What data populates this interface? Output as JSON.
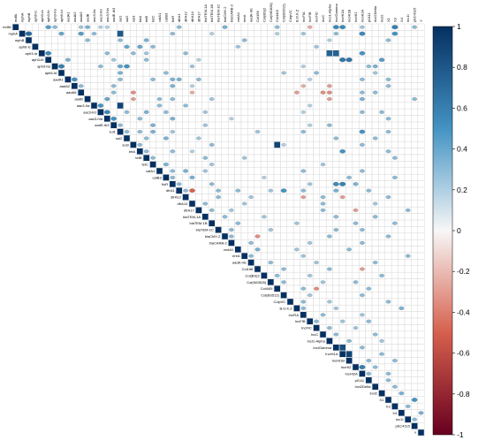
{
  "chart_data": {
    "type": "heatmap",
    "subtype": "upper-triangular correlation matrix (circle glyphs)",
    "labels": [
      "mdfA",
      "mphA",
      "mphB",
      "aph6-Ic",
      "aph3-Ia",
      "aph3-Ib",
      "aph3-IIa",
      "aph6-Id",
      "aadA1",
      "aadA2",
      "aadA5",
      "aadB",
      "aac3-IIa",
      "aac3-IId",
      "aac3-IVa",
      "aadE-Ib3",
      "sul1",
      "sul2",
      "sul3",
      "tetA",
      "tetB",
      "tetC",
      "catA1",
      "catB3",
      "floR",
      "dfrA1",
      "dfrA12",
      "dfrA14",
      "dfrA17",
      "blaTEM-1A",
      "blaTEM-1B",
      "blaTEM-1C",
      "blaCMY-2",
      "blaCARB-2",
      "cmlA1",
      "ereA",
      "aadA-IIIc",
      "Col156",
      "Col(BS)2",
      "Col(MG828)",
      "Col440I",
      "Col(BS512)",
      "ColpVC",
      "B.O.K.Z",
      "IncFIA",
      "IncFIB",
      "IncFIC",
      "IncC",
      "IncI1-Alpha",
      "IncIGamma",
      "IncHI1A",
      "IncHI1B",
      "IncHI2",
      "IncHI2A",
      "p0111",
      "IncI2Delta",
      "Incl2",
      "X1",
      "X3",
      "X4",
      "Inc1I",
      "pEC4115",
      "Y"
    ],
    "diagonal_value": 1,
    "cells": [
      [
        0,
        5,
        0.45
      ],
      [
        0,
        6,
        0.3
      ],
      [
        0,
        10,
        0.25
      ],
      [
        0,
        11,
        0.35
      ],
      [
        0,
        13,
        0.2
      ],
      [
        0,
        14,
        0.2
      ],
      [
        0,
        25,
        0.3
      ],
      [
        0,
        32,
        0.35
      ],
      [
        0,
        40,
        0.3
      ],
      [
        0,
        45,
        -0.25
      ],
      [
        0,
        49,
        0.55
      ],
      [
        0,
        50,
        0.55
      ],
      [
        0,
        53,
        0.25
      ],
      [
        0,
        58,
        0.6
      ],
      [
        0,
        61,
        0.3
      ],
      [
        1,
        2,
        0.7
      ],
      [
        1,
        7,
        0.4
      ],
      [
        1,
        10,
        0.45
      ],
      [
        1,
        12,
        0.3
      ],
      [
        1,
        16,
        0.8
      ],
      [
        1,
        24,
        0.3
      ],
      [
        1,
        30,
        0.2
      ],
      [
        1,
        40,
        0.2
      ],
      [
        1,
        44,
        0.25
      ],
      [
        1,
        49,
        0.3
      ],
      [
        1,
        53,
        0.55
      ],
      [
        1,
        58,
        0.5
      ],
      [
        2,
        11,
        0.3
      ],
      [
        2,
        16,
        0.3
      ],
      [
        2,
        20,
        0.35
      ],
      [
        2,
        35,
        0.3
      ],
      [
        2,
        48,
        0.2
      ],
      [
        2,
        57,
        0.3
      ],
      [
        3,
        17,
        0.4
      ],
      [
        3,
        19,
        0.4
      ],
      [
        3,
        21,
        0.3
      ],
      [
        3,
        34,
        0.25
      ],
      [
        3,
        46,
        0.25
      ],
      [
        4,
        5,
        0.55
      ],
      [
        4,
        14,
        0.3
      ],
      [
        4,
        18,
        0.3
      ],
      [
        4,
        20,
        0.25
      ],
      [
        4,
        26,
        0.3
      ],
      [
        4,
        48,
        0.75
      ],
      [
        4,
        49,
        0.75
      ],
      [
        4,
        53,
        0.5
      ],
      [
        5,
        8,
        0.35
      ],
      [
        5,
        15,
        0.25
      ],
      [
        5,
        20,
        0.3
      ],
      [
        5,
        28,
        0.2
      ],
      [
        5,
        50,
        0.65
      ],
      [
        5,
        51,
        0.65
      ],
      [
        5,
        56,
        0.45
      ],
      [
        6,
        7,
        0.6
      ],
      [
        6,
        13,
        0.3
      ],
      [
        6,
        16,
        0.4
      ],
      [
        6,
        17,
        0.5
      ],
      [
        6,
        27,
        0.25
      ],
      [
        6,
        44,
        0.2
      ],
      [
        6,
        54,
        0.3
      ],
      [
        6,
        55,
        0.35
      ],
      [
        7,
        16,
        0.35
      ],
      [
        7,
        23,
        0.3
      ],
      [
        7,
        41,
        0.25
      ],
      [
        7,
        46,
        0.3
      ],
      [
        7,
        55,
        0.25
      ],
      [
        8,
        9,
        0.5
      ],
      [
        8,
        16,
        0.3
      ],
      [
        8,
        21,
        0.3
      ],
      [
        8,
        24,
        0.35
      ],
      [
        8,
        25,
        0.35
      ],
      [
        8,
        28,
        0.3
      ],
      [
        8,
        45,
        0.2
      ],
      [
        8,
        53,
        0.3
      ],
      [
        8,
        57,
        0.3
      ],
      [
        9,
        10,
        0.3
      ],
      [
        9,
        15,
        0.3
      ],
      [
        9,
        24,
        0.35
      ],
      [
        9,
        27,
        0.2
      ],
      [
        9,
        44,
        -0.25
      ],
      [
        9,
        48,
        -0.3
      ],
      [
        9,
        57,
        0.3
      ],
      [
        10,
        15,
        0.3
      ],
      [
        10,
        18,
        -0.35
      ],
      [
        10,
        27,
        -0.25
      ],
      [
        10,
        43,
        -0.3
      ],
      [
        10,
        47,
        -0.35
      ],
      [
        10,
        48,
        -0.35
      ],
      [
        10,
        53,
        0.3
      ],
      [
        10,
        55,
        0.3
      ],
      [
        11,
        14,
        0.4
      ],
      [
        11,
        18,
        -0.3
      ],
      [
        11,
        22,
        0.3
      ],
      [
        11,
        24,
        0.3
      ],
      [
        11,
        30,
        0.25
      ],
      [
        11,
        48,
        -0.3
      ],
      [
        11,
        53,
        0.35
      ],
      [
        11,
        61,
        0.3
      ],
      [
        12,
        13,
        0.5
      ],
      [
        12,
        16,
        0.9
      ],
      [
        12,
        22,
        0.3
      ],
      [
        12,
        26,
        0.3
      ],
      [
        12,
        45,
        0.2
      ],
      [
        13,
        14,
        0.55
      ],
      [
        13,
        17,
        0.3
      ],
      [
        13,
        20,
        0.35
      ],
      [
        13,
        23,
        0.3
      ],
      [
        13,
        29,
        0.25
      ],
      [
        13,
        44,
        0.2
      ],
      [
        13,
        53,
        0.3
      ],
      [
        13,
        56,
        0.3
      ],
      [
        14,
        15,
        0.5
      ],
      [
        14,
        19,
        0.3
      ],
      [
        14,
        24,
        0.35
      ],
      [
        14,
        33,
        0.2
      ],
      [
        14,
        57,
        0.3
      ],
      [
        15,
        16,
        0.3
      ],
      [
        15,
        21,
        0.35
      ],
      [
        15,
        29,
        0.25
      ],
      [
        15,
        45,
        0.2
      ],
      [
        15,
        48,
        0.3
      ],
      [
        16,
        17,
        0.3
      ],
      [
        16,
        19,
        0.3
      ],
      [
        16,
        21,
        0.35
      ],
      [
        16,
        24,
        0.25
      ],
      [
        16,
        37,
        0.25
      ],
      [
        16,
        44,
        0.3
      ],
      [
        16,
        53,
        0.5
      ],
      [
        16,
        57,
        0.3
      ],
      [
        17,
        20,
        0.3
      ],
      [
        17,
        23,
        0.35
      ],
      [
        17,
        28,
        0.25
      ],
      [
        17,
        49,
        0.3
      ],
      [
        17,
        55,
        0.3
      ],
      [
        18,
        19,
        0.3
      ],
      [
        18,
        30,
        0.3
      ],
      [
        18,
        40,
        0.9
      ],
      [
        18,
        41,
        0.2
      ],
      [
        18,
        53,
        0.3
      ],
      [
        19,
        20,
        0.3
      ],
      [
        19,
        24,
        0.3
      ],
      [
        19,
        27,
        0.2
      ],
      [
        19,
        50,
        0.5
      ],
      [
        19,
        57,
        0.3
      ],
      [
        20,
        21,
        0.3
      ],
      [
        20,
        29,
        0.3
      ],
      [
        20,
        35,
        0.25
      ],
      [
        20,
        58,
        0.3
      ],
      [
        21,
        23,
        0.35
      ],
      [
        21,
        30,
        0.25
      ],
      [
        21,
        47,
        0.25
      ],
      [
        22,
        24,
        0.3
      ],
      [
        22,
        26,
        0.35
      ],
      [
        22,
        29,
        0.25
      ],
      [
        22,
        44,
        0.3
      ],
      [
        22,
        53,
        0.3
      ],
      [
        23,
        24,
        0.3
      ],
      [
        23,
        27,
        0.35
      ],
      [
        23,
        38,
        0.2
      ],
      [
        23,
        51,
        0.3
      ],
      [
        23,
        58,
        0.3
      ],
      [
        24,
        25,
        0.3
      ],
      [
        24,
        30,
        0.3
      ],
      [
        24,
        45,
        0.25
      ],
      [
        24,
        49,
        0.55
      ],
      [
        24,
        50,
        0.6
      ],
      [
        24,
        52,
        0.35
      ],
      [
        25,
        26,
        0.3
      ],
      [
        25,
        27,
        -0.5
      ],
      [
        25,
        31,
        0.3
      ],
      [
        25,
        34,
        0.3
      ],
      [
        25,
        39,
        0.25
      ],
      [
        25,
        41,
        0.5
      ],
      [
        25,
        44,
        0.3
      ],
      [
        25,
        49,
        0.35
      ],
      [
        25,
        54,
        0.3
      ],
      [
        26,
        31,
        0.3
      ],
      [
        26,
        36,
        0.25
      ],
      [
        26,
        44,
        -0.3
      ],
      [
        26,
        47,
        0.3
      ],
      [
        26,
        50,
        -0.3
      ],
      [
        26,
        57,
        0.3
      ],
      [
        27,
        29,
        0.3
      ],
      [
        27,
        35,
        0.25
      ],
      [
        27,
        47,
        0.3
      ],
      [
        27,
        55,
        0.25
      ],
      [
        28,
        30,
        0.3
      ],
      [
        28,
        33,
        0.25
      ],
      [
        28,
        47,
        0.3
      ],
      [
        28,
        52,
        -0.3
      ],
      [
        28,
        60,
        0.3
      ],
      [
        29,
        32,
        0.3
      ],
      [
        29,
        38,
        0.25
      ],
      [
        29,
        49,
        0.3
      ],
      [
        29,
        55,
        0.3
      ],
      [
        30,
        34,
        0.3
      ],
      [
        30,
        43,
        0.25
      ],
      [
        30,
        52,
        0.3
      ],
      [
        30,
        58,
        0.3
      ],
      [
        31,
        33,
        0.3
      ],
      [
        31,
        39,
        0.25
      ],
      [
        31,
        49,
        0.3
      ],
      [
        31,
        53,
        0.3
      ],
      [
        32,
        33,
        0.3
      ],
      [
        32,
        37,
        -0.35
      ],
      [
        32,
        48,
        0.3
      ],
      [
        32,
        57,
        0.3
      ],
      [
        33,
        36,
        0.3
      ],
      [
        33,
        45,
        0.25
      ],
      [
        33,
        53,
        0.3
      ],
      [
        34,
        37,
        0.35
      ],
      [
        34,
        43,
        0.25
      ],
      [
        34,
        51,
        0.3
      ],
      [
        35,
        36,
        0.3
      ],
      [
        35,
        44,
        0.25
      ],
      [
        35,
        60,
        0.3
      ],
      [
        36,
        39,
        0.3
      ],
      [
        36,
        46,
        0.25
      ],
      [
        36,
        55,
        0.3
      ],
      [
        37,
        41,
        0.3
      ],
      [
        37,
        48,
        0.3
      ],
      [
        37,
        53,
        -0.3
      ],
      [
        38,
        40,
        0.3
      ],
      [
        38,
        45,
        0.25
      ],
      [
        38,
        56,
        0.3
      ],
      [
        39,
        41,
        0.3
      ],
      [
        39,
        47,
        0.25
      ],
      [
        39,
        52,
        0.3
      ],
      [
        40,
        44,
        0.3
      ],
      [
        40,
        46,
        -0.35
      ],
      [
        40,
        54,
        0.3
      ],
      [
        41,
        45,
        0.25
      ],
      [
        41,
        53,
        0.3
      ],
      [
        42,
        44,
        0.3
      ],
      [
        42,
        48,
        0.25
      ],
      [
        42,
        57,
        0.3
      ],
      [
        43,
        44,
        0.3
      ],
      [
        43,
        49,
        0.25
      ],
      [
        43,
        59,
        0.35
      ],
      [
        44,
        47,
        0.3
      ],
      [
        44,
        53,
        0.25
      ],
      [
        45,
        46,
        0.3
      ],
      [
        45,
        50,
        0.25
      ],
      [
        45,
        54,
        0.3
      ],
      [
        46,
        48,
        0.3
      ],
      [
        46,
        52,
        0.25
      ],
      [
        47,
        49,
        0.3
      ],
      [
        47,
        55,
        0.3
      ],
      [
        48,
        51,
        0.3
      ],
      [
        48,
        56,
        0.25
      ],
      [
        49,
        50,
        0.85
      ],
      [
        49,
        53,
        0.3
      ],
      [
        50,
        51,
        0.9
      ],
      [
        50,
        56,
        0.3
      ],
      [
        51,
        54,
        0.3
      ],
      [
        51,
        58,
        0.3
      ],
      [
        52,
        53,
        0.6
      ],
      [
        52,
        55,
        0.3
      ],
      [
        53,
        54,
        0.3
      ],
      [
        53,
        57,
        0.3
      ],
      [
        54,
        57,
        0.3
      ],
      [
        55,
        58,
        0.3
      ],
      [
        56,
        59,
        0.35
      ],
      [
        57,
        61,
        0.5
      ],
      [
        58,
        60,
        0.3
      ],
      [
        59,
        62,
        0.35
      ],
      [
        60,
        61,
        0.3
      ]
    ],
    "colorbar": {
      "min": -1,
      "max": 1,
      "ticks": [
        -1,
        -0.8,
        -0.6,
        -0.4,
        -0.2,
        0,
        0.2,
        0.4,
        0.6,
        0.8,
        1
      ],
      "tick_labels": [
        "-1",
        "-0.8",
        "-0.6",
        "-0.4",
        "-0.2",
        "0",
        "0.2",
        "0.4",
        "0.6",
        "0.8",
        "1"
      ],
      "colors": {
        "neg": "#67001f",
        "mid_neg": "#d6604d",
        "zero": "#f7f7f7",
        "mid_pos": "#4393c3",
        "pos": "#053061"
      }
    },
    "grid": true,
    "legend_placement": "right"
  }
}
